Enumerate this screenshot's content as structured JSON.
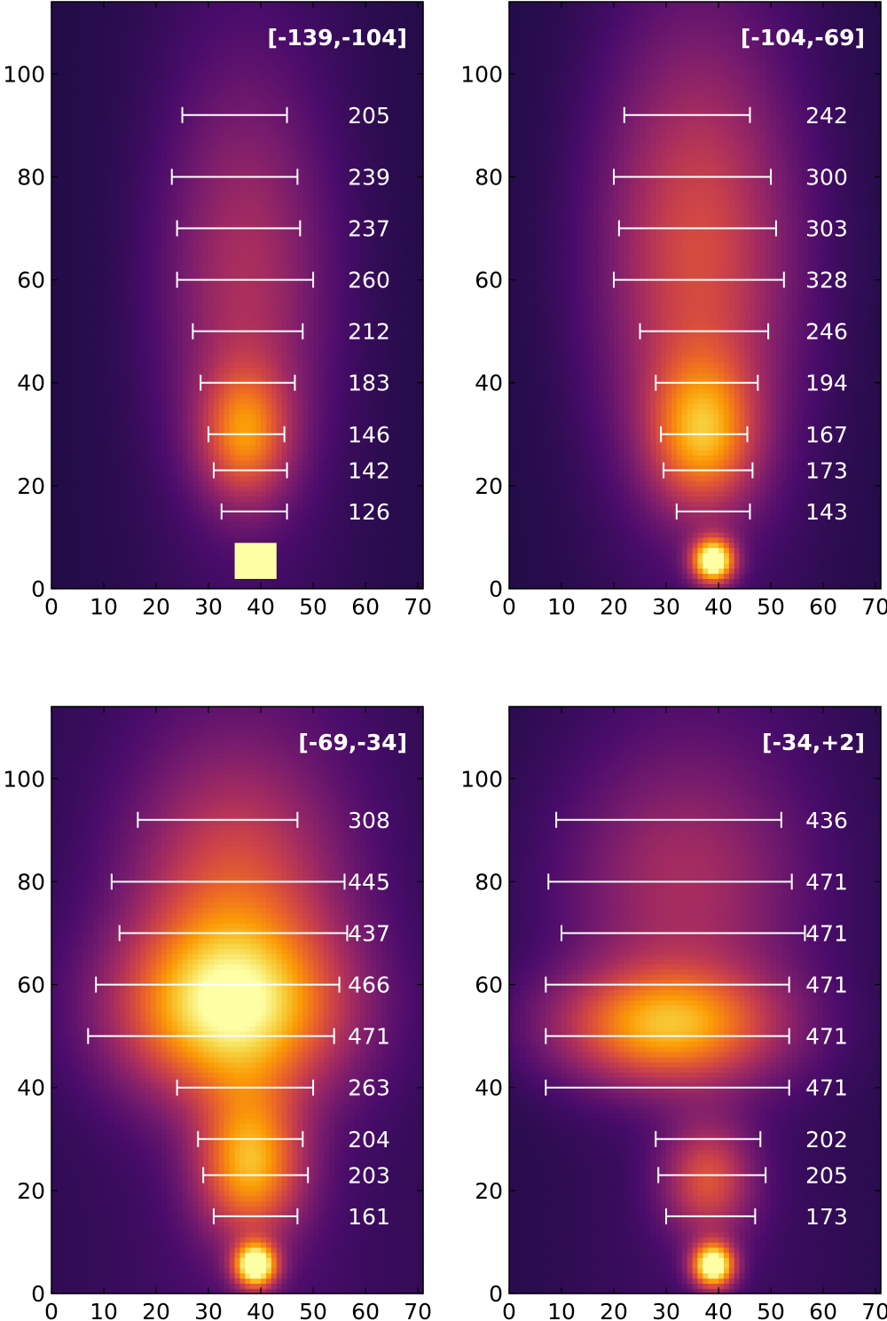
{
  "colors": {
    "colormap": [
      "#000004",
      "#1b0c41",
      "#4a0c6b",
      "#781c6d",
      "#a52c60",
      "#cf4446",
      "#ed6925",
      "#fb9b06",
      "#f7d13d",
      "#fcffa4"
    ],
    "bar_color": "#ffffff",
    "axis_color": "#000000"
  },
  "chart_data": [
    {
      "type": "heatmap",
      "title": "[-139,-104]",
      "xlim": [
        0,
        71
      ],
      "ylim": [
        0,
        114
      ],
      "xticks": [
        0,
        10,
        20,
        30,
        40,
        50,
        60,
        70
      ],
      "yticks": [
        0,
        20,
        40,
        60,
        80,
        100
      ],
      "intensity_blobs": [
        {
          "x": 39,
          "y": 5.5,
          "sx": 4,
          "sy": 3.5,
          "amp": 1.0,
          "kind": "box"
        },
        {
          "x": 37,
          "y": 30,
          "sx": 6,
          "sy": 9,
          "amp": 0.45
        },
        {
          "x": 37,
          "y": 60,
          "sx": 11,
          "sy": 28,
          "amp": 0.28
        }
      ],
      "background_level": 0.16,
      "intervals": [
        {
          "y": 92,
          "x0": 25,
          "x1": 45,
          "label": "205"
        },
        {
          "y": 80,
          "x0": 23,
          "x1": 47,
          "label": "239"
        },
        {
          "y": 70,
          "x0": 24,
          "x1": 47.5,
          "label": "237"
        },
        {
          "y": 60,
          "x0": 24,
          "x1": 50,
          "label": "260"
        },
        {
          "y": 50,
          "x0": 27,
          "x1": 48,
          "label": "212"
        },
        {
          "y": 40,
          "x0": 28.5,
          "x1": 46.5,
          "label": "183"
        },
        {
          "y": 30,
          "x0": 30,
          "x1": 44.5,
          "label": "146"
        },
        {
          "y": 23,
          "x0": 31,
          "x1": 45,
          "label": "142"
        },
        {
          "y": 15,
          "x0": 32.5,
          "x1": 45,
          "label": "126"
        }
      ]
    },
    {
      "type": "heatmap",
      "title": "[-104,-69]",
      "xlim": [
        0,
        71
      ],
      "ylim": [
        0,
        114
      ],
      "xticks": [
        0,
        10,
        20,
        30,
        40,
        50,
        60,
        70
      ],
      "yticks": [
        0,
        20,
        40,
        60,
        80,
        100
      ],
      "intensity_blobs": [
        {
          "x": 39,
          "y": 5.5,
          "sx": 2.8,
          "sy": 3,
          "amp": 0.95
        },
        {
          "x": 37,
          "y": 30,
          "sx": 7,
          "sy": 10,
          "amp": 0.5
        },
        {
          "x": 36,
          "y": 65,
          "sx": 13,
          "sy": 30,
          "amp": 0.4
        }
      ],
      "background_level": 0.16,
      "intervals": [
        {
          "y": 92,
          "x0": 22,
          "x1": 46,
          "label": "242"
        },
        {
          "y": 80,
          "x0": 20,
          "x1": 50,
          "label": "300"
        },
        {
          "y": 70,
          "x0": 21,
          "x1": 51,
          "label": "303"
        },
        {
          "y": 60,
          "x0": 20,
          "x1": 52.5,
          "label": "328"
        },
        {
          "y": 50,
          "x0": 25,
          "x1": 49.5,
          "label": "246"
        },
        {
          "y": 40,
          "x0": 28,
          "x1": 47.5,
          "label": "194"
        },
        {
          "y": 30,
          "x0": 29,
          "x1": 45.5,
          "label": "167"
        },
        {
          "y": 23,
          "x0": 29.5,
          "x1": 46.5,
          "label": "173"
        },
        {
          "y": 15,
          "x0": 32,
          "x1": 46,
          "label": "143"
        }
      ]
    },
    {
      "type": "heatmap",
      "title": "[-69,-34]",
      "xlim": [
        0,
        71
      ],
      "ylim": [
        0,
        114
      ],
      "xticks": [
        0,
        10,
        20,
        30,
        40,
        50,
        60,
        70
      ],
      "yticks": [
        0,
        20,
        40,
        60,
        80,
        100
      ],
      "intensity_blobs": [
        {
          "x": 39,
          "y": 5.5,
          "sx": 2.8,
          "sy": 3,
          "amp": 0.95
        },
        {
          "x": 38,
          "y": 25,
          "sx": 7,
          "sy": 10,
          "amp": 0.6
        },
        {
          "x": 34,
          "y": 55,
          "sx": 15,
          "sy": 12,
          "amp": 0.7
        },
        {
          "x": 35,
          "y": 80,
          "sx": 14,
          "sy": 18,
          "amp": 0.35
        }
      ],
      "background_level": 0.2,
      "intervals": [
        {
          "y": 92,
          "x0": 16.5,
          "x1": 47,
          "label": "308"
        },
        {
          "y": 80,
          "x0": 11.5,
          "x1": 56,
          "label": "445"
        },
        {
          "y": 70,
          "x0": 13,
          "x1": 56.5,
          "label": "437"
        },
        {
          "y": 60,
          "x0": 8.5,
          "x1": 55,
          "label": "466"
        },
        {
          "y": 50,
          "x0": 7,
          "x1": 54,
          "label": "471"
        },
        {
          "y": 40,
          "x0": 24,
          "x1": 50,
          "label": "263"
        },
        {
          "y": 30,
          "x0": 28,
          "x1": 48,
          "label": "204"
        },
        {
          "y": 23,
          "x0": 29,
          "x1": 49,
          "label": "203"
        },
        {
          "y": 15,
          "x0": 31,
          "x1": 47,
          "label": "161"
        }
      ]
    },
    {
      "type": "heatmap",
      "title": "[-34,+2]",
      "xlim": [
        0,
        71
      ],
      "ylim": [
        0,
        114
      ],
      "xticks": [
        0,
        10,
        20,
        30,
        40,
        50,
        60,
        70
      ],
      "yticks": [
        0,
        20,
        40,
        60,
        80,
        100
      ],
      "intensity_blobs": [
        {
          "x": 39,
          "y": 5.5,
          "sx": 2.8,
          "sy": 3,
          "amp": 0.95
        },
        {
          "x": 38,
          "y": 22,
          "sx": 6,
          "sy": 8,
          "amp": 0.4
        },
        {
          "x": 30,
          "y": 52,
          "sx": 15,
          "sy": 8,
          "amp": 0.6
        },
        {
          "x": 33,
          "y": 80,
          "sx": 16,
          "sy": 18,
          "amp": 0.25
        }
      ],
      "background_level": 0.18,
      "intervals": [
        {
          "y": 92,
          "x0": 9,
          "x1": 52,
          "label": "436"
        },
        {
          "y": 80,
          "x0": 7.5,
          "x1": 54,
          "label": "471"
        },
        {
          "y": 70,
          "x0": 10,
          "x1": 56.5,
          "label": "471"
        },
        {
          "y": 60,
          "x0": 7,
          "x1": 53.5,
          "label": "471"
        },
        {
          "y": 50,
          "x0": 7,
          "x1": 53.5,
          "label": "471"
        },
        {
          "y": 40,
          "x0": 7,
          "x1": 53.5,
          "label": "471"
        },
        {
          "y": 30,
          "x0": 28,
          "x1": 48,
          "label": "202"
        },
        {
          "y": 23,
          "x0": 28.5,
          "x1": 49,
          "label": "205"
        },
        {
          "y": 15,
          "x0": 30,
          "x1": 47,
          "label": "173"
        }
      ]
    }
  ]
}
